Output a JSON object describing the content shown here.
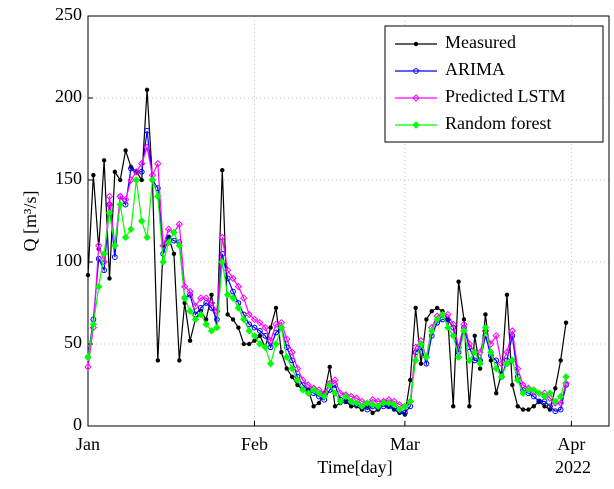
{
  "chart_data": {
    "type": "line",
    "xlabel": "Time[day]",
    "ylabel": "Q [m³/s]",
    "x_annotation": "2022",
    "x": [
      0,
      1,
      2,
      3,
      4,
      5,
      6,
      7,
      8,
      9,
      10,
      11,
      12,
      13,
      14,
      15,
      16,
      17,
      18,
      19,
      20,
      21,
      22,
      23,
      24,
      25,
      26,
      27,
      28,
      29,
      30,
      31,
      32,
      33,
      34,
      35,
      36,
      37,
      38,
      39,
      40,
      41,
      42,
      43,
      44,
      45,
      46,
      47,
      48,
      49,
      50,
      51,
      52,
      53,
      54,
      55,
      56,
      57,
      58,
      59,
      60,
      61,
      62,
      63,
      64,
      65,
      66,
      67,
      68,
      69,
      70,
      71,
      72,
      73,
      74,
      75,
      76,
      77,
      78,
      79,
      80,
      81,
      82,
      83,
      84,
      85,
      86,
      87,
      88,
      89
    ],
    "series": [
      {
        "name": "Measured",
        "color": "#000000",
        "values": [
          92,
          153,
          108,
          162,
          90,
          155,
          150,
          168,
          158,
          155,
          150,
          205,
          150,
          40,
          110,
          115,
          105,
          40,
          75,
          52,
          65,
          70,
          65,
          80,
          60,
          156,
          68,
          65,
          60,
          50,
          50,
          52,
          55,
          48,
          60,
          72,
          45,
          35,
          30,
          25,
          22,
          22,
          12,
          14,
          20,
          36,
          12,
          14,
          15,
          12,
          12,
          10,
          12,
          8,
          10,
          13,
          12,
          10,
          8,
          7,
          28,
          72,
          38,
          65,
          70,
          72,
          70,
          65,
          12,
          88,
          65,
          12,
          55,
          35,
          68,
          40,
          20,
          32,
          80,
          25,
          12,
          10,
          10,
          12,
          15,
          12,
          10,
          23,
          40,
          63
        ]
      },
      {
        "name": "ARIMA",
        "color": "#0000ff",
        "values": [
          42,
          65,
          102,
          95,
          135,
          103,
          140,
          135,
          157,
          155,
          155,
          180,
          150,
          145,
          105,
          115,
          113,
          112,
          78,
          80,
          68,
          72,
          75,
          72,
          65,
          105,
          90,
          82,
          75,
          68,
          62,
          60,
          58,
          55,
          48,
          57,
          60,
          48,
          40,
          30,
          25,
          22,
          20,
          18,
          16,
          22,
          25,
          16,
          15,
          15,
          13,
          12,
          10,
          12,
          11,
          12,
          12,
          11,
          9,
          8,
          12,
          45,
          48,
          38,
          55,
          63,
          65,
          65,
          60,
          45,
          60,
          48,
          40,
          40,
          55,
          43,
          40,
          30,
          40,
          55,
          30,
          22,
          20,
          18,
          15,
          15,
          12,
          9,
          10,
          25
        ]
      },
      {
        "name": "Predicted LSTM",
        "color": "#ff00ff",
        "values": [
          36,
          60,
          110,
          100,
          140,
          110,
          140,
          138,
          150,
          155,
          160,
          170,
          153,
          160,
          110,
          120,
          118,
          123,
          85,
          82,
          73,
          78,
          78,
          75,
          70,
          115,
          95,
          90,
          85,
          78,
          68,
          65,
          63,
          60,
          52,
          62,
          63,
          53,
          45,
          35,
          28,
          25,
          23,
          22,
          20,
          26,
          28,
          20,
          19,
          18,
          17,
          15,
          14,
          16,
          15,
          15,
          16,
          15,
          13,
          12,
          15,
          48,
          52,
          42,
          60,
          67,
          68,
          68,
          62,
          48,
          62,
          50,
          45,
          45,
          58,
          50,
          55,
          38,
          45,
          58,
          35,
          25,
          23,
          21,
          20,
          20,
          17,
          14,
          14,
          26
        ]
      },
      {
        "name": "Random forest",
        "color": "#00ff00",
        "values": [
          42,
          62,
          85,
          105,
          130,
          110,
          135,
          115,
          120,
          150,
          125,
          115,
          150,
          140,
          100,
          112,
          118,
          110,
          78,
          70,
          65,
          68,
          62,
          58,
          60,
          100,
          80,
          78,
          72,
          65,
          58,
          55,
          50,
          48,
          38,
          50,
          60,
          42,
          35,
          28,
          22,
          20,
          22,
          20,
          18,
          25,
          20,
          15,
          18,
          15,
          14,
          12,
          14,
          13,
          12,
          14,
          14,
          13,
          10,
          12,
          15,
          40,
          50,
          42,
          58,
          65,
          68,
          60,
          55,
          42,
          58,
          40,
          45,
          38,
          60,
          45,
          35,
          30,
          38,
          40,
          28,
          20,
          22,
          22,
          20,
          18,
          20,
          15,
          18,
          30
        ]
      }
    ],
    "xlim": [
      0,
      97
    ],
    "xticks": [
      {
        "value": 0,
        "label": "Jan"
      },
      {
        "value": 31,
        "label": "Feb"
      },
      {
        "value": 59,
        "label": "Mar"
      },
      {
        "value": 90,
        "label": "Apr"
      }
    ],
    "ylim": [
      0,
      250
    ],
    "yticks": [
      0,
      50,
      100,
      150,
      200,
      250
    ],
    "grid": true,
    "legend": "upper-right"
  }
}
